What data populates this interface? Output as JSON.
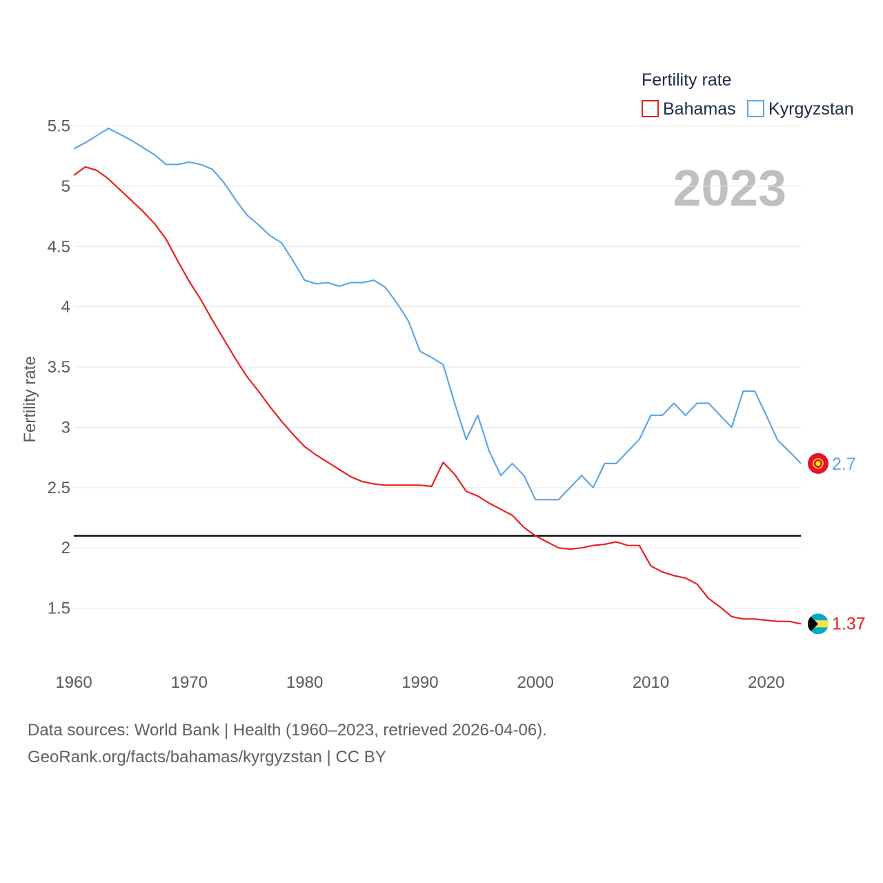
{
  "chart_data": {
    "type": "line",
    "title": "",
    "ylabel": "Fertility rate",
    "xlabel": "",
    "year_label": "2023",
    "legend": {
      "title": "Fertility rate",
      "position": "top-right"
    },
    "xlim": [
      1960,
      2023
    ],
    "ylim": [
      1.0,
      5.6
    ],
    "y_ticks": [
      "5.5",
      "5",
      "4.5",
      "4",
      "3.5",
      "3",
      "2.5",
      "2",
      "1.5"
    ],
    "y_tick_values": [
      5.5,
      5.0,
      4.5,
      4.0,
      3.5,
      3.0,
      2.5,
      2.0,
      1.5
    ],
    "x_ticks": [
      "1960",
      "1970",
      "1980",
      "1990",
      "2000",
      "2010",
      "2020"
    ],
    "x_tick_values": [
      1960,
      1970,
      1980,
      1990,
      2000,
      2010,
      2020
    ],
    "reference_line": {
      "value": 2.1,
      "color": "#000000"
    },
    "x": [
      1960,
      1961,
      1962,
      1963,
      1964,
      1965,
      1966,
      1967,
      1968,
      1969,
      1970,
      1971,
      1972,
      1973,
      1974,
      1975,
      1976,
      1977,
      1978,
      1979,
      1980,
      1981,
      1982,
      1983,
      1984,
      1985,
      1986,
      1987,
      1988,
      1989,
      1990,
      1991,
      1992,
      1993,
      1994,
      1995,
      1996,
      1997,
      1998,
      1999,
      2000,
      2001,
      2002,
      2003,
      2004,
      2005,
      2006,
      2007,
      2008,
      2009,
      2010,
      2011,
      2012,
      2013,
      2014,
      2015,
      2016,
      2017,
      2018,
      2019,
      2020,
      2021,
      2022,
      2023
    ],
    "series": [
      {
        "name": "Bahamas",
        "color": "#e8201f",
        "end_label": "1.37",
        "flag": "bahamas-flag",
        "values": [
          5.09,
          5.16,
          5.13,
          5.06,
          4.97,
          4.88,
          4.79,
          4.69,
          4.56,
          4.38,
          4.21,
          4.06,
          3.89,
          3.73,
          3.57,
          3.42,
          3.3,
          3.17,
          3.05,
          2.94,
          2.84,
          2.77,
          2.71,
          2.65,
          2.59,
          2.55,
          2.53,
          2.52,
          2.52,
          2.52,
          2.52,
          2.51,
          2.71,
          2.61,
          2.47,
          2.43,
          2.37,
          2.32,
          2.27,
          2.17,
          2.1,
          2.05,
          2.0,
          1.99,
          2.0,
          2.02,
          2.03,
          2.05,
          2.02,
          2.02,
          1.85,
          1.8,
          1.77,
          1.75,
          1.7,
          1.58,
          1.51,
          1.43,
          1.41,
          1.41,
          1.4,
          1.39,
          1.39,
          1.37
        ]
      },
      {
        "name": "Kyrgyzstan",
        "color": "#5ea6e6",
        "end_label": "2.7",
        "flag": "kyrgyzstan-flag",
        "values": [
          5.31,
          5.36,
          5.42,
          5.48,
          5.43,
          5.38,
          5.32,
          5.26,
          5.18,
          5.18,
          5.2,
          5.18,
          5.14,
          5.03,
          4.89,
          4.76,
          4.68,
          4.59,
          4.53,
          4.38,
          4.22,
          4.19,
          4.2,
          4.17,
          4.2,
          4.2,
          4.22,
          4.16,
          4.03,
          3.88,
          3.63,
          3.58,
          3.52,
          3.2,
          2.9,
          3.1,
          2.8,
          2.6,
          2.7,
          2.6,
          2.4,
          2.4,
          2.4,
          2.5,
          2.6,
          2.5,
          2.7,
          2.7,
          2.8,
          2.9,
          3.1,
          3.1,
          3.2,
          3.1,
          3.2,
          3.2,
          3.1,
          3.0,
          3.3,
          3.3,
          3.1,
          2.89,
          2.8,
          2.7
        ]
      }
    ]
  },
  "footer": {
    "sources": "Data sources: World Bank | Health (1960–2023, retrieved 2026-04-06).",
    "url": "GeoRank.org/facts/bahamas/kyrgyzstan | CC BY"
  }
}
